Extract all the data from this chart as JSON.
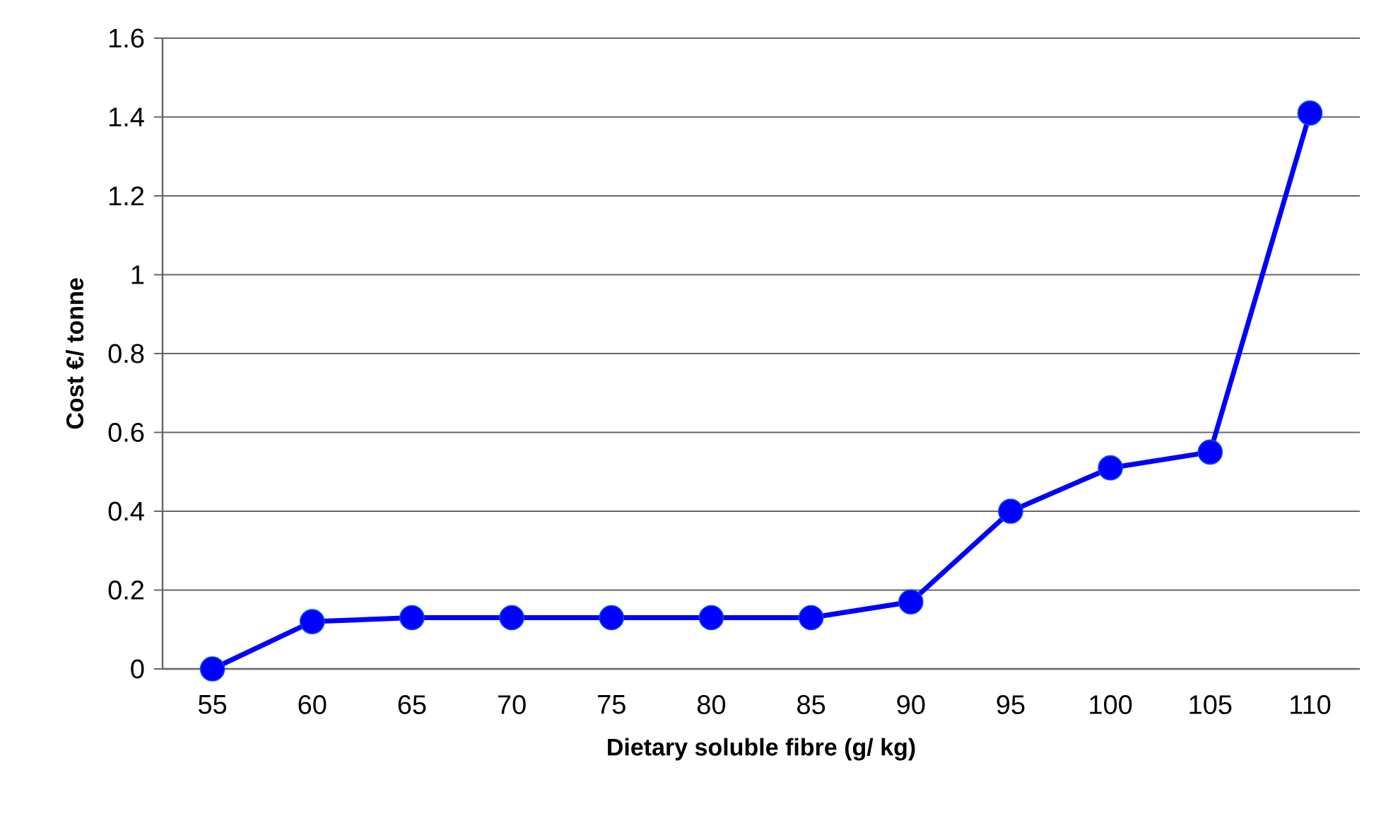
{
  "chart_data": {
    "type": "line",
    "xlabel": "Dietary soluble fibre (g/ kg)",
    "ylabel": "Cost €/ tonne",
    "categories": [
      "55",
      "60",
      "65",
      "70",
      "75",
      "80",
      "85",
      "90",
      "95",
      "100",
      "105",
      "110"
    ],
    "series": [
      {
        "color": "#0000ff",
        "values": [
          0,
          0.12,
          0.13,
          0.13,
          0.13,
          0.13,
          0.13,
          0.17,
          0.4,
          0.51,
          0.55,
          1.41
        ]
      }
    ],
    "ylim": [
      0,
      1.6
    ],
    "yticks": [
      0,
      0.2,
      0.4,
      0.6,
      0.8,
      1,
      1.2,
      1.4,
      1.6
    ],
    "grid": "y",
    "marker": "circle",
    "line_style": "solid"
  }
}
